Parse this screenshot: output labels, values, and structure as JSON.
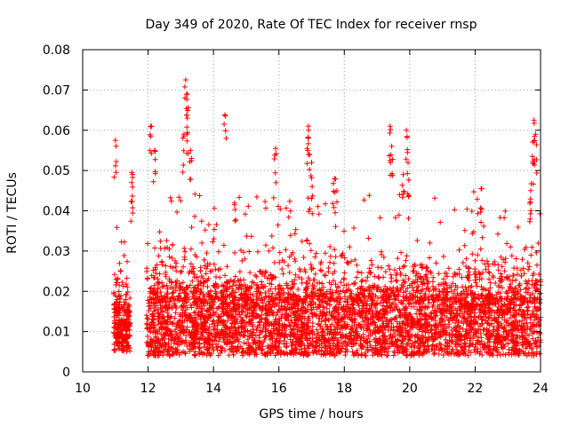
{
  "chart_data": {
    "type": "scatter",
    "title": "Day 349 of 2020, Rate Of TEC Index for receiver rnsp",
    "xlabel": "GPS time / hours",
    "ylabel": "ROTI / TECUs",
    "xlim": [
      10,
      24
    ],
    "ylim": [
      0,
      0.08
    ],
    "grid": true,
    "marker": "+",
    "color": "#ff0000",
    "x_ticks": [
      10,
      12,
      14,
      16,
      18,
      20,
      22,
      24
    ],
    "x_tick_labels": [
      "10",
      "12",
      "14",
      "16",
      "18",
      "20",
      "22",
      "24"
    ],
    "y_ticks": [
      0,
      0.01,
      0.02,
      0.03,
      0.04,
      0.05,
      0.06,
      0.07,
      0.08
    ],
    "y_tick_labels": [
      "0",
      "0.01",
      "0.02",
      "0.03",
      "0.04",
      "0.05",
      "0.06",
      "0.07",
      "0.08"
    ],
    "segments": [
      {
        "x_start": 10.95,
        "x_end": 11.45,
        "base_low": 0.005,
        "base_high": 0.015,
        "peak": 0.036
      },
      {
        "x_start": 11.95,
        "x_end": 24.0,
        "base_low": 0.004,
        "base_high": 0.018,
        "peak": 0.045
      }
    ],
    "spikes": [
      {
        "x": 11.0,
        "y": 0.0575
      },
      {
        "x": 11.5,
        "y": 0.0495
      },
      {
        "x": 11.5,
        "y": 0.047
      },
      {
        "x": 12.1,
        "y": 0.061
      },
      {
        "x": 12.2,
        "y": 0.055
      },
      {
        "x": 13.15,
        "y": 0.0725
      },
      {
        "x": 13.2,
        "y": 0.069
      },
      {
        "x": 13.2,
        "y": 0.063
      },
      {
        "x": 13.1,
        "y": 0.059
      },
      {
        "x": 13.3,
        "y": 0.055
      },
      {
        "x": 14.35,
        "y": 0.0638
      },
      {
        "x": 15.9,
        "y": 0.0555
      },
      {
        "x": 16.9,
        "y": 0.061
      },
      {
        "x": 16.9,
        "y": 0.058
      },
      {
        "x": 17.0,
        "y": 0.052
      },
      {
        "x": 17.7,
        "y": 0.048
      },
      {
        "x": 19.4,
        "y": 0.061
      },
      {
        "x": 19.45,
        "y": 0.056
      },
      {
        "x": 19.9,
        "y": 0.06
      },
      {
        "x": 19.95,
        "y": 0.052
      },
      {
        "x": 19.8,
        "y": 0.049
      },
      {
        "x": 22.2,
        "y": 0.0455
      },
      {
        "x": 23.8,
        "y": 0.0625
      },
      {
        "x": 23.85,
        "y": 0.059
      },
      {
        "x": 23.75,
        "y": 0.0535
      },
      {
        "x": 23.7,
        "y": 0.045
      }
    ]
  }
}
